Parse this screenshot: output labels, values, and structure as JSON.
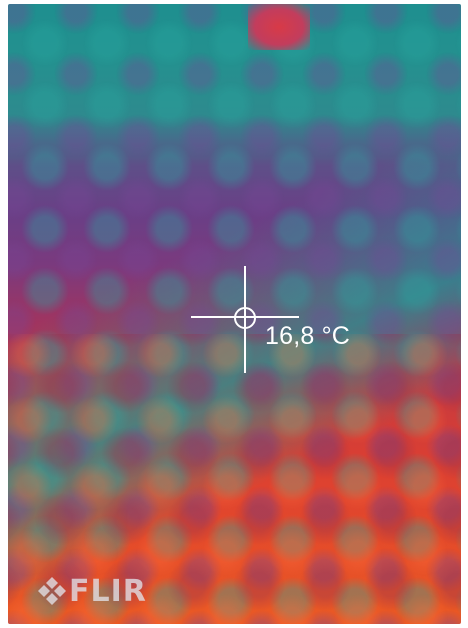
{
  "thermal_view": {
    "spot_temperature": "16,8 °C",
    "palette": {
      "cool": "#1e8f8f",
      "mid": "#7a3a7e",
      "warm": "#db3f32",
      "hot": "#ea5a24"
    }
  },
  "brand": {
    "logo_text": "FLIR",
    "logo_icon": "flir-diamond-logo-icon"
  }
}
